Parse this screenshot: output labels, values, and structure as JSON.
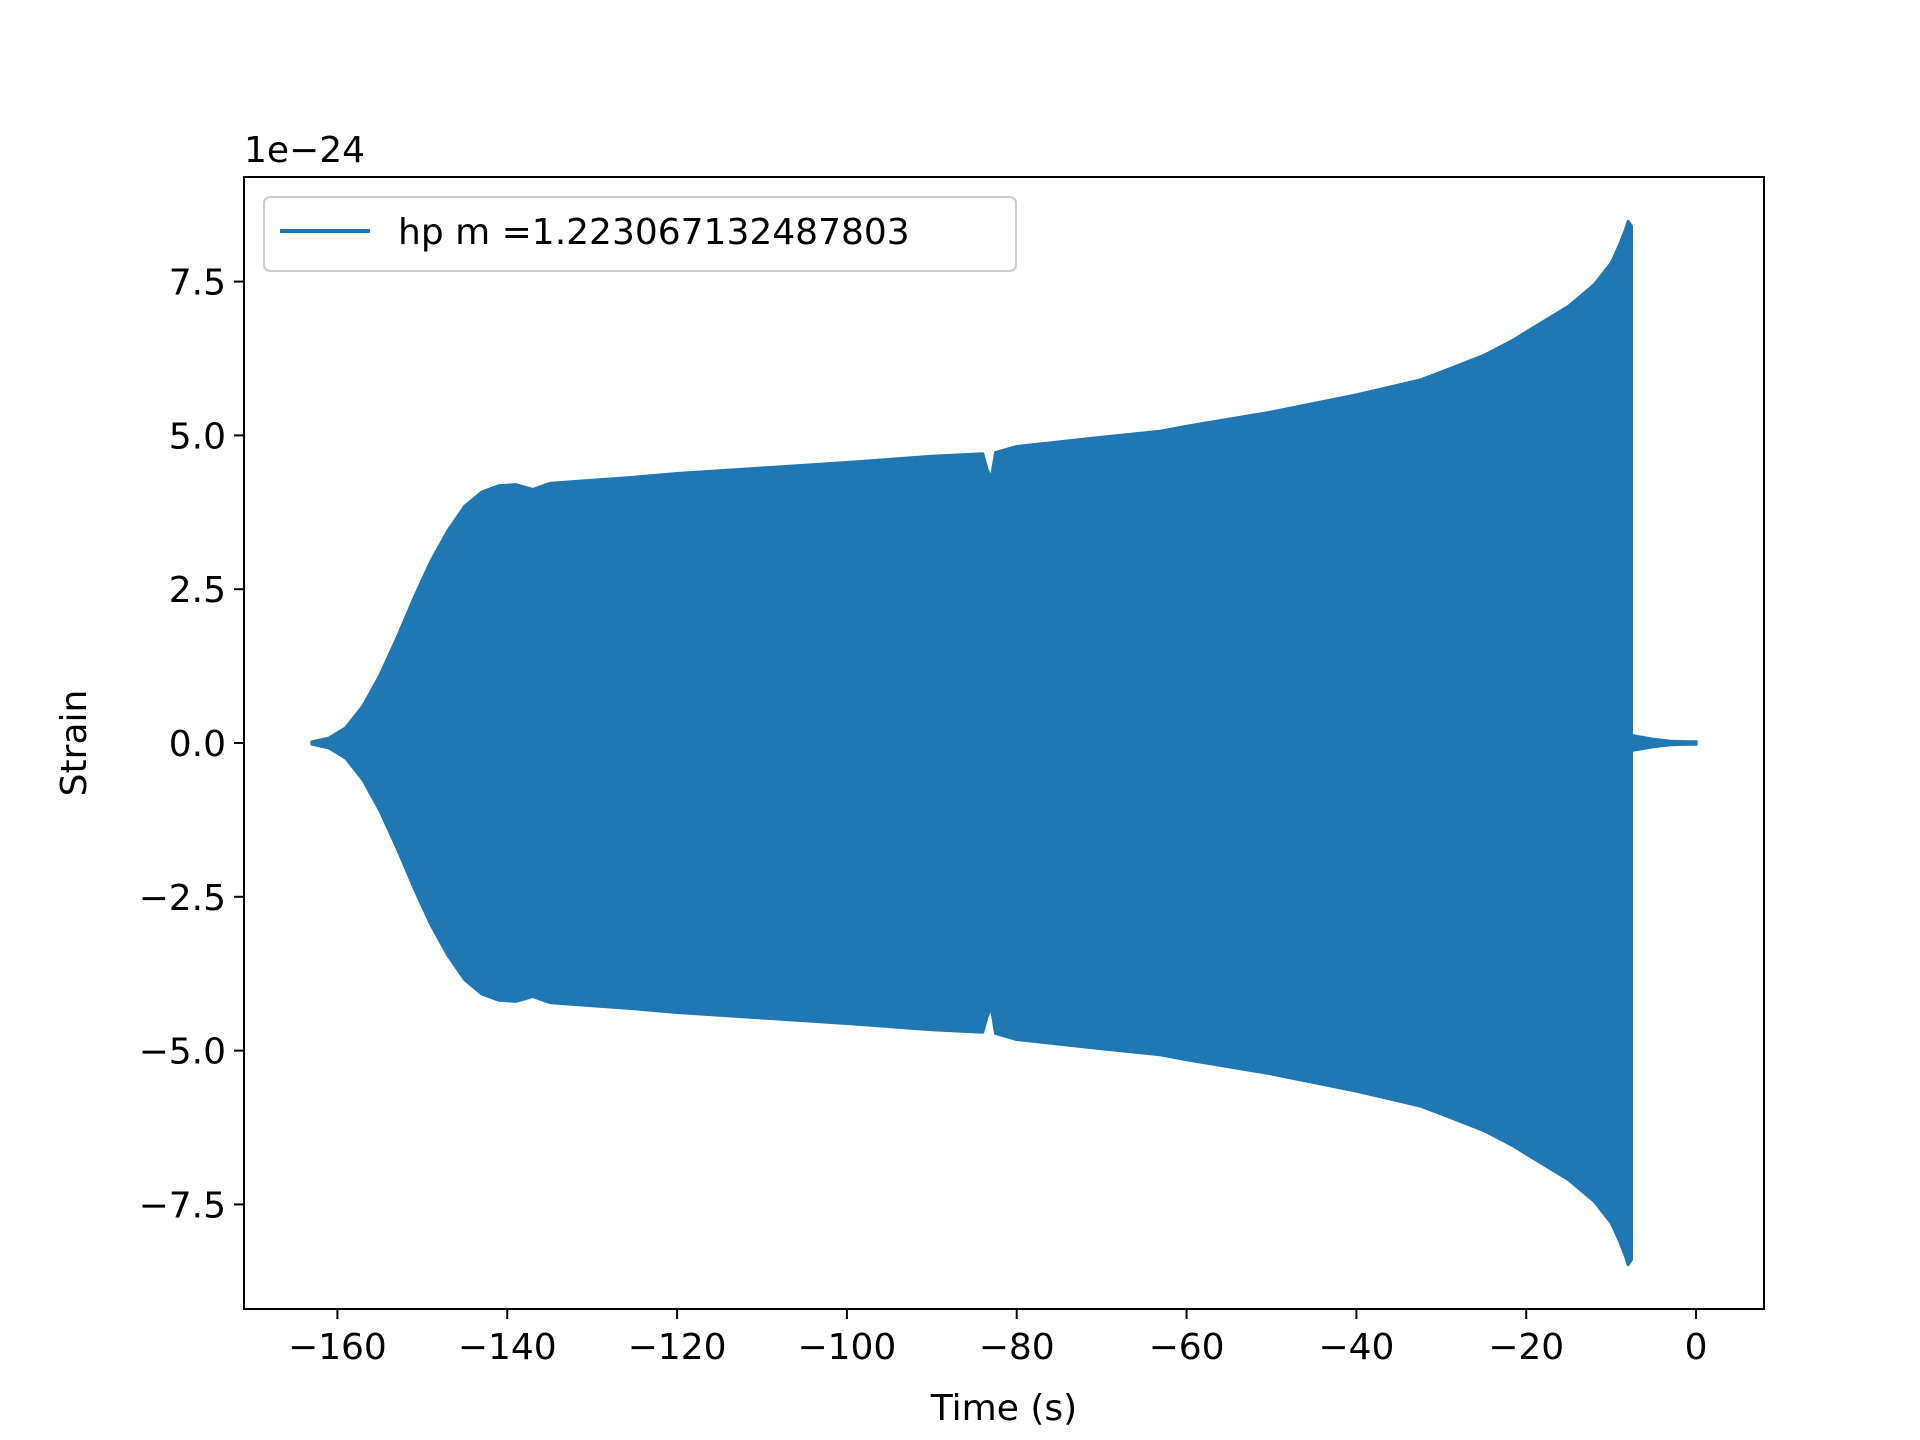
{
  "chart_data": {
    "type": "line",
    "title": "",
    "xlabel": "Time (s)",
    "ylabel": "Strain",
    "offset_text": "1e−24",
    "y_scale_exponent": -24,
    "xlim": [
      -171,
      8
    ],
    "ylim": [
      -9.2,
      9.2
    ],
    "x_ticks": [
      -160,
      -140,
      -120,
      -100,
      -80,
      -60,
      -40,
      -20,
      0
    ],
    "x_tick_labels": [
      "−160",
      "−140",
      "−120",
      "−100",
      "−80",
      "−60",
      "−40",
      "−20",
      "0"
    ],
    "y_ticks": [
      -7.5,
      -5.0,
      -2.5,
      0.0,
      2.5,
      5.0,
      7.5
    ],
    "y_tick_labels": [
      "−7.5",
      "−5.0",
      "−2.5",
      "0.0",
      "2.5",
      "5.0",
      "7.5"
    ],
    "grid": false,
    "legend_position": "upper-left",
    "series": [
      {
        "name": "hp m =1.223067132487803",
        "color": "#1f77b4",
        "envelope_time": [
          -163,
          -161,
          -159,
          -157,
          -155,
          -153,
          -151,
          -149,
          -147,
          -145,
          -143,
          -141,
          -139,
          -137,
          -135,
          -130,
          -125,
          -120,
          -110,
          -100,
          -90,
          -84,
          -83.5,
          -83,
          -82.5,
          -80,
          -70,
          -63,
          -60,
          -50,
          -40,
          -32.5,
          -30,
          -25,
          -21.5,
          -20,
          -15,
          -12,
          -10,
          -9,
          -8.3,
          -8,
          -7.6
        ],
        "envelope_amplitude": [
          0.02,
          0.08,
          0.25,
          0.6,
          1.1,
          1.7,
          2.35,
          2.95,
          3.45,
          3.85,
          4.08,
          4.18,
          4.2,
          4.12,
          4.22,
          4.27,
          4.32,
          4.38,
          4.47,
          4.56,
          4.66,
          4.7,
          4.45,
          4.3,
          4.72,
          4.82,
          4.97,
          5.07,
          5.15,
          5.38,
          5.66,
          5.9,
          6.03,
          6.3,
          6.55,
          6.68,
          7.1,
          7.45,
          7.8,
          8.1,
          8.35,
          8.48,
          8.4
        ],
        "ringdown_time": [
          -7.5,
          -5,
          -3,
          -1,
          0
        ],
        "ringdown_amplitude": [
          0.12,
          0.06,
          0.03,
          0.02,
          0.02
        ]
      }
    ]
  }
}
